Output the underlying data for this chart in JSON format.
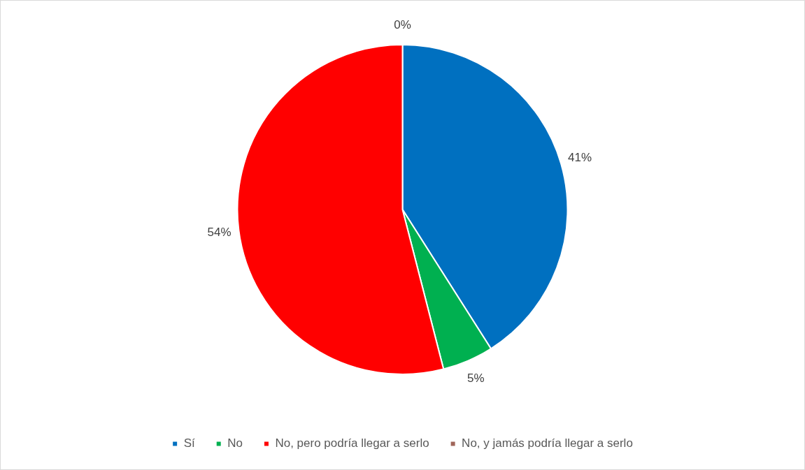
{
  "chart_data": {
    "type": "pie",
    "categories": [
      "Sí",
      "No",
      "No, pero podría llegar a serlo",
      "No, y jamás podría llegar a serlo"
    ],
    "values": [
      41,
      5,
      54,
      0
    ],
    "colors": [
      "#0070c0",
      "#00b050",
      "#ff0000",
      "#a0665a"
    ],
    "value_labels": [
      "41%",
      "5%",
      "54%",
      "0%"
    ],
    "legend": "bottom"
  }
}
